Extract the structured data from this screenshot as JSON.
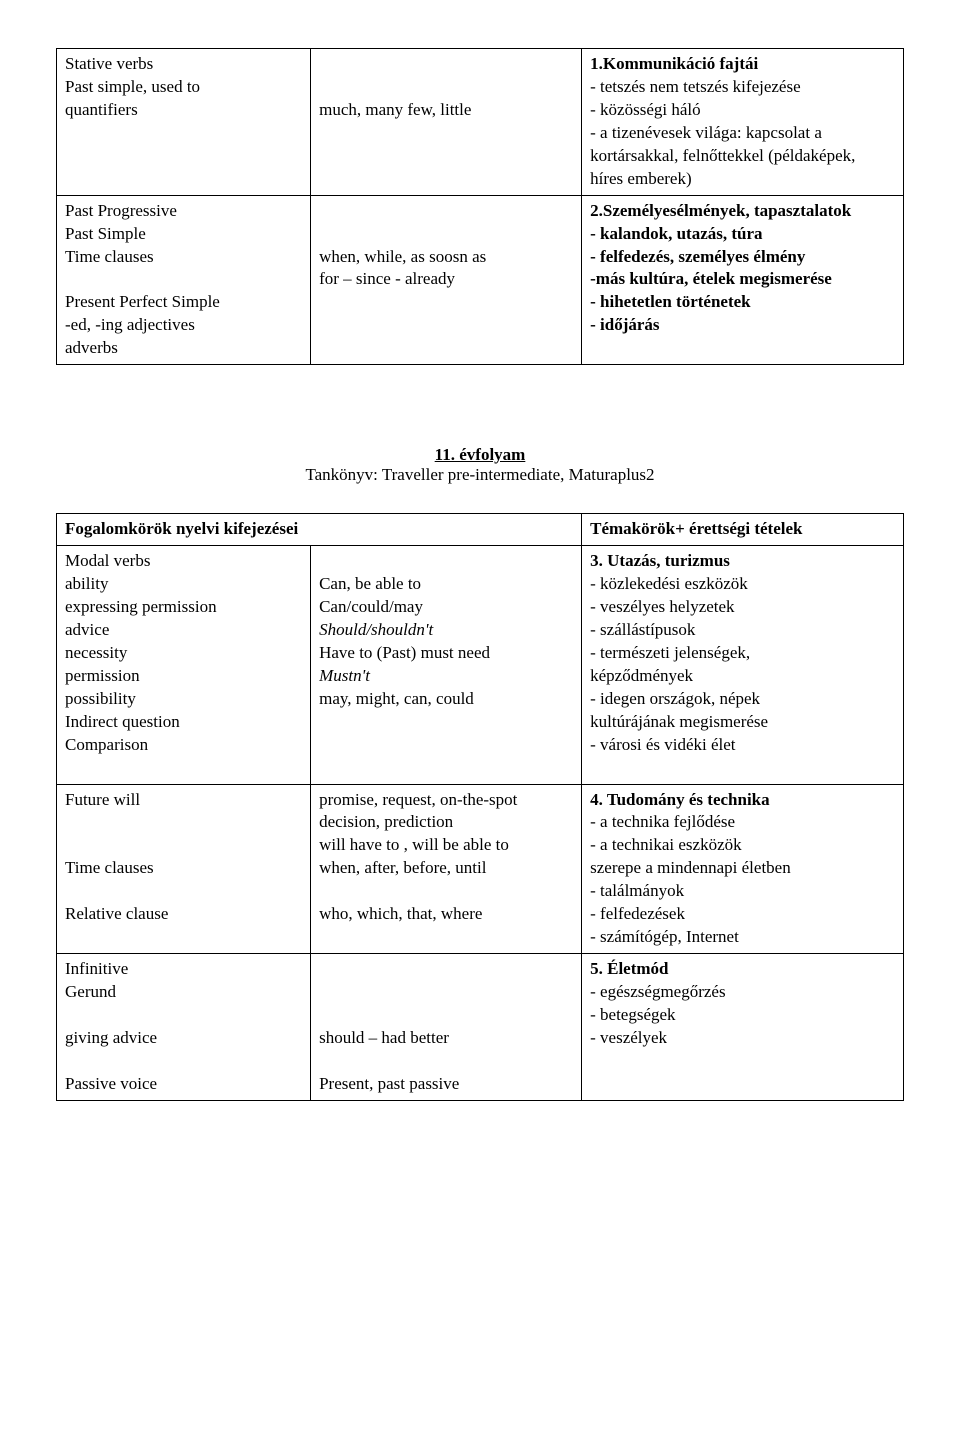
{
  "table1": {
    "row1": {
      "colA_l1": "Stative verbs",
      "colA_l2": "Past simple, used to",
      "colA_l3": "quantifiers",
      "colB_l1": "much, many few, little",
      "colC_head": "1.Kommunikáció fajtái",
      "colC_l1": "- tetszés nem tetszés kifejezése",
      "colC_l2": "- közösségi háló",
      "colC_l3": "- a tizenévesek világa: kapcsolat a",
      "colC_l4": "kortársakkal, felnőttekkel (példaképek,",
      "colC_l5": "híres emberek)"
    },
    "row2": {
      "colA_l1": "Past Progressive",
      "colA_l2": "Past Simple",
      "colA_l3": "Time clauses",
      "colA_l4": "",
      "colA_l5": "Present Perfect Simple",
      "colA_l6": "-ed, -ing adjectives",
      "colA_l7": "adverbs",
      "colB_l1": "when, while, as soosn as",
      "colB_l2": "for – since - already",
      "colC_head": "2.Személyesélmények, tapasztalatok",
      "colC_l1": "- kalandok, utazás, túra",
      "colC_l2": "- felfedezés, személyes élmény",
      "colC_l3": "-más kultúra, ételek  megismerése",
      "colC_l4": "- hihetetlen történetek",
      "colC_l5": "- időjárás"
    }
  },
  "midtitle": {
    "line1": "11. évfolyam",
    "line2": "Tankönyv: Traveller pre-intermediate, Maturaplus2"
  },
  "table2": {
    "headA": "Fogalomkörök nyelvi kifejezései",
    "headC": "Témakörök+ érettségi tételek",
    "row1": {
      "colA_l1": "Modal verbs",
      "colA_l2": "ability",
      "colA_l3": "expressing permission",
      "colA_l4": "advice",
      "colA_l5": "necessity",
      "colA_l6": "permission",
      "colA_l7": "possibility",
      "colA_l8": "Indirect question",
      "colA_l9": "Comparison",
      "colB_l1": "Can, be able to",
      "colB_l2": "Can/could/may",
      "colB_l3": "Should/shouldn't",
      "colB_l4": "Have to (Past) must need",
      "colB_l5": "Mustn't",
      "colB_l6": "may, might, can, could",
      "colC_head": "3. Utazás, turizmus",
      "colC_l1": "- közlekedési eszközök",
      "colC_l2": "- veszélyes helyzetek",
      "colC_l3": "- szállástípusok",
      "colC_l4": "- természeti jelenségek,",
      "colC_l5": "képződmények",
      "colC_l6": "-  idegen  országok,  népek",
      "colC_l7": "kultúrájának megismerése",
      "colC_l8": "- városi és vidéki élet"
    },
    "row2": {
      "colA_l1": "Future will",
      "colA_l2": "",
      "colA_l3": "",
      "colA_l4": "Time clauses",
      "colA_l5": "",
      "colA_l6": "Relative clause",
      "colB_l1": "promise, request, on-the-spot",
      "colB_l2": "decision, prediction",
      "colB_l3": "will have to , will be able to",
      "colB_l4": "when, after, before, until",
      "colB_l5": "",
      "colB_l6": "who, which, that, where",
      "colC_head": "4. Tudomány és technika",
      "colC_l1": "- a technika fejlődése",
      "colC_l2": "- a technikai eszközök",
      "colC_l3": "szerepe a mindennapi életben",
      "colC_l4": "- találmányok",
      "colC_l5": "- felfedezések",
      "colC_l6": "- számítógép, Internet"
    },
    "row3": {
      "colA_l1": "Infinitive",
      "colA_l2": "Gerund",
      "colA_l3": "",
      "colA_l4": "giving advice",
      "colA_l5": "",
      "colA_l6": "Passive voice",
      "colB_l1": "",
      "colB_l2": "",
      "colB_l3": "",
      "colB_l4": "should – had better",
      "colB_l5": "",
      "colB_l6": "Present, past passive",
      "colC_head": "5. Életmód",
      "colC_l1": "- egészségmegőrzés",
      "colC_l2": "- betegségek",
      "colC_l3": "- veszélyek"
    }
  }
}
